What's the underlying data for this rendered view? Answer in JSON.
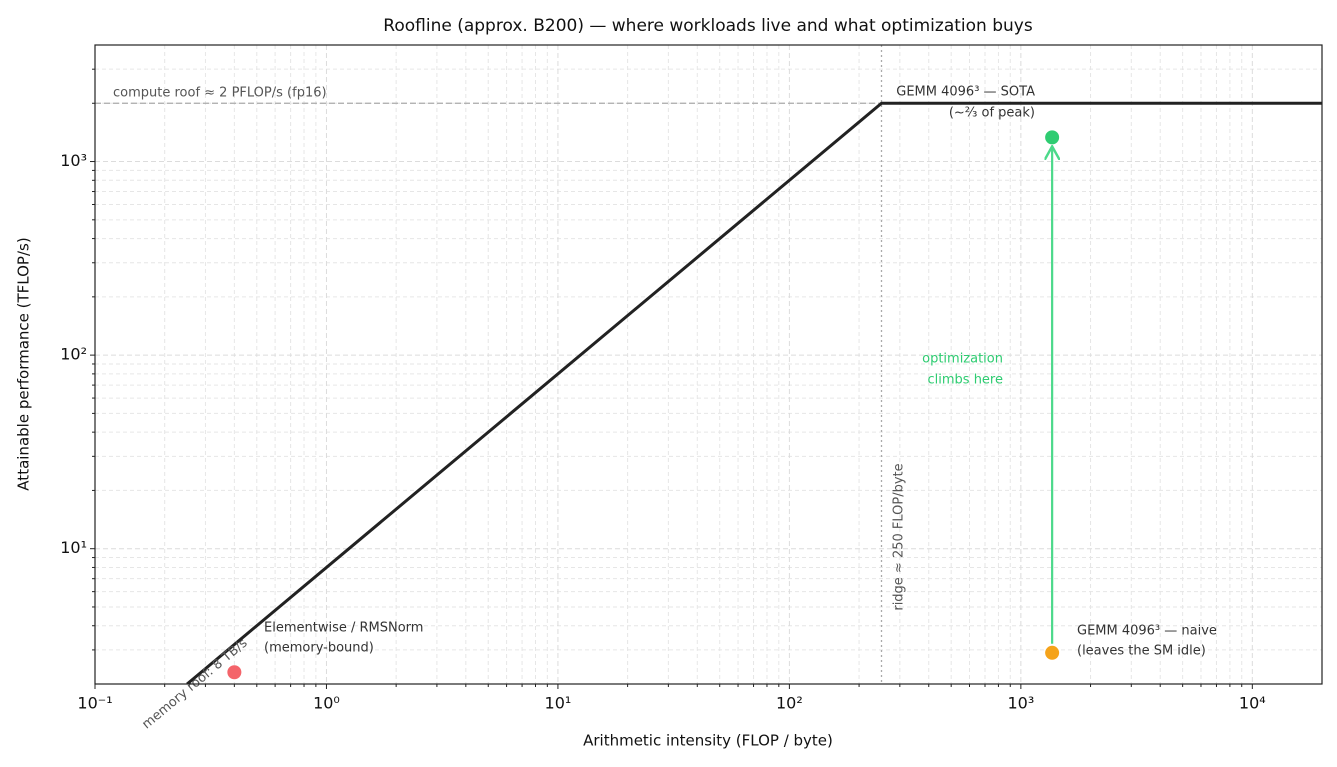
{
  "chart_data": {
    "type": "roofline",
    "title": "Roofline (approx. B200) — where workloads live and what optimization buys",
    "x_label": "Arithmetic intensity (FLOP / byte)",
    "y_label": "Attainable performance (TFLOP/s)",
    "log_x": true,
    "log_y": true,
    "grid": true,
    "minor_grid": true,
    "xlim": [
      0.1,
      20000
    ],
    "ylim": [
      2,
      4000
    ],
    "xticks": [
      {
        "value": 0.1,
        "label": "10⁻¹"
      },
      {
        "value": 1,
        "label": "10⁰"
      },
      {
        "value": 10,
        "label": "10¹"
      },
      {
        "value": 100,
        "label": "10²"
      },
      {
        "value": 1000,
        "label": "10³"
      },
      {
        "value": 10000,
        "label": "10⁴"
      }
    ],
    "yticks": [
      {
        "value": 10,
        "label": "10¹"
      },
      {
        "value": 100,
        "label": "10²"
      },
      {
        "value": 1000,
        "label": "10³"
      }
    ],
    "roofline": {
      "color": "#222222",
      "x": [
        0.25,
        250,
        20000
      ],
      "y": [
        2,
        2000,
        2000
      ]
    },
    "compute_roof": 2000,
    "compute_roof_label": "compute roof ≈ 2 PFLOP/s (fp16)",
    "memory_roof_label": "memory roof: 8 TB/s",
    "ridge": 250,
    "ridge_label": "ridge ≈ 250 FLOP/byte",
    "points": [
      {
        "label": [
          "Elementwise / RMSNorm",
          "(memory-bound)"
        ],
        "x": 0.4,
        "y": 2.3,
        "color": "#f4646a"
      },
      {
        "label": [
          "GEMM 4096³ — naive",
          "(leaves the SM idle)"
        ],
        "x": 1365,
        "y": 2.9,
        "color": "#f5a31a"
      },
      {
        "label": [
          "GEMM 4096³ — SOTA",
          "(~⅔ of peak)"
        ],
        "x": 1365,
        "y": 1333,
        "color": "#2ecc71"
      }
    ],
    "arrow_label": [
      "optimization",
      "climbs here"
    ],
    "arrow_color": "#4cd98a"
  }
}
